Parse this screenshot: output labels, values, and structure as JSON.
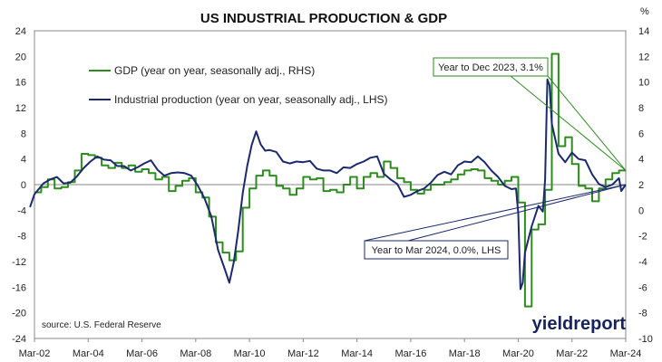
{
  "chart_data": {
    "type": "line",
    "title": "US INDUSTRIAL PRODUCTION & GDP",
    "right_unit": "%",
    "source": "source: U.S. Federal Reserve",
    "brand": "yieldreport",
    "grid": false,
    "legend_position": "top-left",
    "x_ticks": [
      "Mar-02",
      "Mar-04",
      "Mar-06",
      "Mar-08",
      "Mar-10",
      "Mar-12",
      "Mar-14",
      "Mar-16",
      "Mar-18",
      "Mar-20",
      "Mar-22",
      "Mar-24"
    ],
    "y_left": {
      "min": -24,
      "max": 24,
      "ticks": [
        "24",
        "20",
        "16",
        "12",
        "8",
        "4",
        "0",
        "-4",
        "-8",
        "-12",
        "-16",
        "-20",
        "-24"
      ]
    },
    "y_right": {
      "min": -10,
      "max": 14,
      "ticks": [
        "14",
        "12",
        "10",
        "8",
        "6",
        "4",
        "2",
        "0",
        "-2",
        "-4",
        "-6",
        "-8",
        "-10"
      ]
    },
    "colors": {
      "gdp": "#2e8b1f",
      "ip": "#1a2a6c",
      "axis": "#666666"
    },
    "series": [
      {
        "key": "gdp",
        "name": "GDP (year on year, seasonally adj., RHS)",
        "axis": "right",
        "step": true,
        "points": [
          [
            "2002-03",
            1.4
          ],
          [
            "2002-06",
            1.8
          ],
          [
            "2002-09",
            2.4
          ],
          [
            "2002-12",
            1.7
          ],
          [
            "2003-03",
            1.8
          ],
          [
            "2003-06",
            2.2
          ],
          [
            "2003-09",
            3.1
          ],
          [
            "2003-12",
            4.4
          ],
          [
            "2004-03",
            4.3
          ],
          [
            "2004-06",
            4.1
          ],
          [
            "2004-09",
            3.5
          ],
          [
            "2004-12",
            3.3
          ],
          [
            "2005-03",
            3.7
          ],
          [
            "2005-06",
            3.3
          ],
          [
            "2005-09",
            3.5
          ],
          [
            "2005-12",
            3.0
          ],
          [
            "2006-03",
            3.2
          ],
          [
            "2006-06",
            2.9
          ],
          [
            "2006-09",
            2.4
          ],
          [
            "2006-12",
            2.6
          ],
          [
            "2007-03",
            1.5
          ],
          [
            "2007-06",
            1.9
          ],
          [
            "2007-09",
            2.3
          ],
          [
            "2007-12",
            2.5
          ],
          [
            "2008-03",
            1.4
          ],
          [
            "2008-06",
            1.0
          ],
          [
            "2008-09",
            -0.5
          ],
          [
            "2008-12",
            -2.5
          ],
          [
            "2009-03",
            -3.3
          ],
          [
            "2009-06",
            -3.9
          ],
          [
            "2009-09",
            -3.2
          ],
          [
            "2009-12",
            0.2
          ],
          [
            "2010-03",
            1.7
          ],
          [
            "2010-06",
            2.7
          ],
          [
            "2010-09",
            3.1
          ],
          [
            "2010-12",
            2.7
          ],
          [
            "2011-03",
            1.9
          ],
          [
            "2011-06",
            1.7
          ],
          [
            "2011-09",
            1.2
          ],
          [
            "2011-12",
            1.7
          ],
          [
            "2012-03",
            2.6
          ],
          [
            "2012-06",
            2.4
          ],
          [
            "2012-09",
            2.5
          ],
          [
            "2012-12",
            1.5
          ],
          [
            "2013-03",
            1.6
          ],
          [
            "2013-06",
            1.4
          ],
          [
            "2013-09",
            2.0
          ],
          [
            "2013-12",
            2.6
          ],
          [
            "2014-03",
            1.7
          ],
          [
            "2014-06",
            2.6
          ],
          [
            "2014-09",
            2.9
          ],
          [
            "2014-12",
            2.6
          ],
          [
            "2015-03",
            3.8
          ],
          [
            "2015-06",
            3.3
          ],
          [
            "2015-09",
            2.5
          ],
          [
            "2015-12",
            2.2
          ],
          [
            "2016-03",
            1.6
          ],
          [
            "2016-06",
            1.3
          ],
          [
            "2016-09",
            1.6
          ],
          [
            "2016-12",
            2.0
          ],
          [
            "2017-03",
            2.0
          ],
          [
            "2017-06",
            2.2
          ],
          [
            "2017-09",
            2.4
          ],
          [
            "2017-12",
            2.8
          ],
          [
            "2018-03",
            3.1
          ],
          [
            "2018-06",
            3.2
          ],
          [
            "2018-09",
            3.1
          ],
          [
            "2018-12",
            2.5
          ],
          [
            "2019-03",
            2.3
          ],
          [
            "2019-06",
            2.0
          ],
          [
            "2019-09",
            2.3
          ],
          [
            "2019-12",
            2.6
          ],
          [
            "2020-03",
            0.6
          ],
          [
            "2020-06",
            -7.5
          ],
          [
            "2020-09",
            -1.5
          ],
          [
            "2020-12",
            -1.1
          ],
          [
            "2021-03",
            1.6
          ],
          [
            "2021-06",
            12.2
          ],
          [
            "2021-09",
            5.0
          ],
          [
            "2021-12",
            5.7
          ],
          [
            "2022-03",
            3.6
          ],
          [
            "2022-06",
            1.9
          ],
          [
            "2022-09",
            1.7
          ],
          [
            "2022-12",
            0.7
          ],
          [
            "2023-03",
            1.7
          ],
          [
            "2023-06",
            2.4
          ],
          [
            "2023-09",
            2.9
          ],
          [
            "2023-12",
            3.1
          ]
        ]
      },
      {
        "key": "ip",
        "name": "Industrial production (year on year, seasonally adj., LHS)",
        "axis": "left",
        "step": false,
        "points": [
          [
            "2002-01",
            -3.5
          ],
          [
            "2002-03",
            -1.5
          ],
          [
            "2002-07",
            0.2
          ],
          [
            "2002-10",
            0.8
          ],
          [
            "2003-01",
            1.2
          ],
          [
            "2003-04",
            0.2
          ],
          [
            "2003-07",
            0.3
          ],
          [
            "2003-10",
            1.3
          ],
          [
            "2004-01",
            2.6
          ],
          [
            "2004-04",
            3.6
          ],
          [
            "2004-07",
            4.4
          ],
          [
            "2004-10",
            3.9
          ],
          [
            "2005-01",
            3.8
          ],
          [
            "2005-04",
            2.9
          ],
          [
            "2005-07",
            2.9
          ],
          [
            "2005-10",
            2.2
          ],
          [
            "2006-01",
            2.7
          ],
          [
            "2006-04",
            3.3
          ],
          [
            "2006-07",
            3.8
          ],
          [
            "2006-10",
            2.3
          ],
          [
            "2007-01",
            1.4
          ],
          [
            "2007-04",
            1.8
          ],
          [
            "2007-07",
            1.9
          ],
          [
            "2007-10",
            1.8
          ],
          [
            "2008-01",
            1.4
          ],
          [
            "2008-04",
            -0.2
          ],
          [
            "2008-07",
            -2.2
          ],
          [
            "2008-10",
            -5.0
          ],
          [
            "2009-01",
            -10.2
          ],
          [
            "2009-04",
            -13.2
          ],
          [
            "2009-06",
            -15.3
          ],
          [
            "2009-08",
            -12.1
          ],
          [
            "2009-10",
            -7.2
          ],
          [
            "2009-12",
            -1.3
          ],
          [
            "2010-02",
            2.9
          ],
          [
            "2010-04",
            6.2
          ],
          [
            "2010-06",
            8.3
          ],
          [
            "2010-08",
            6.3
          ],
          [
            "2010-10",
            5.3
          ],
          [
            "2010-12",
            5.4
          ],
          [
            "2011-03",
            5.1
          ],
          [
            "2011-06",
            3.6
          ],
          [
            "2011-09",
            3.3
          ],
          [
            "2011-12",
            3.6
          ],
          [
            "2012-03",
            3.5
          ],
          [
            "2012-06",
            3.7
          ],
          [
            "2012-09",
            2.5
          ],
          [
            "2012-12",
            2.2
          ],
          [
            "2013-03",
            2.2
          ],
          [
            "2013-06",
            1.8
          ],
          [
            "2013-09",
            2.7
          ],
          [
            "2013-12",
            2.6
          ],
          [
            "2014-03",
            3.2
          ],
          [
            "2014-06",
            3.6
          ],
          [
            "2014-09",
            4.2
          ],
          [
            "2014-12",
            4.4
          ],
          [
            "2015-03",
            1.7
          ],
          [
            "2015-06",
            0.8
          ],
          [
            "2015-09",
            0.1
          ],
          [
            "2015-12",
            -1.9
          ],
          [
            "2016-03",
            -1.6
          ],
          [
            "2016-06",
            -1.0
          ],
          [
            "2016-09",
            -0.6
          ],
          [
            "2016-12",
            0.3
          ],
          [
            "2017-03",
            1.5
          ],
          [
            "2017-06",
            2.0
          ],
          [
            "2017-09",
            1.6
          ],
          [
            "2017-12",
            3.0
          ],
          [
            "2018-03",
            3.6
          ],
          [
            "2018-06",
            3.5
          ],
          [
            "2018-09",
            4.4
          ],
          [
            "2018-12",
            3.5
          ],
          [
            "2019-03",
            2.2
          ],
          [
            "2019-06",
            1.2
          ],
          [
            "2019-09",
            -0.2
          ],
          [
            "2019-12",
            -0.7
          ],
          [
            "2020-02",
            -0.6
          ],
          [
            "2020-03",
            -4.5
          ],
          [
            "2020-04",
            -16.3
          ],
          [
            "2020-05",
            -15.3
          ],
          [
            "2020-06",
            -10.6
          ],
          [
            "2020-09",
            -6.5
          ],
          [
            "2020-12",
            -3.3
          ],
          [
            "2021-02",
            -4.2
          ],
          [
            "2021-03",
            0.8
          ],
          [
            "2021-04",
            16.4
          ],
          [
            "2021-05",
            15.5
          ],
          [
            "2021-06",
            9.5
          ],
          [
            "2021-09",
            4.8
          ],
          [
            "2021-12",
            3.5
          ],
          [
            "2022-03",
            5.0
          ],
          [
            "2022-06",
            4.0
          ],
          [
            "2022-09",
            3.8
          ],
          [
            "2022-12",
            1.6
          ],
          [
            "2023-03",
            0.1
          ],
          [
            "2023-06",
            -0.4
          ],
          [
            "2023-09",
            0.0
          ],
          [
            "2023-12",
            1.0
          ],
          [
            "2024-01",
            -1.0
          ],
          [
            "2024-03",
            0.0
          ]
        ]
      }
    ],
    "annotations": [
      {
        "key": "gdp",
        "text": "Year to Dec 2023, 3.1%",
        "color": "#2e8b1f"
      },
      {
        "key": "ip",
        "text": "Year to Mar 2024, 0.0%, LHS",
        "color": "#1a2a6c"
      }
    ]
  }
}
